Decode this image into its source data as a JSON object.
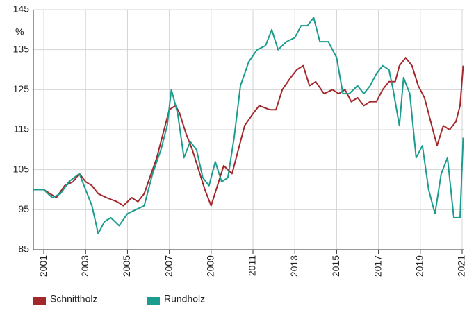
{
  "chart_data": {
    "type": "line",
    "unit_label": "%",
    "xlim": [
      2000.5,
      2021.1
    ],
    "xticks": [
      2001,
      2003,
      2005,
      2007,
      2009,
      2011,
      2013,
      2015,
      2017,
      2019,
      2021
    ],
    "ylim": [
      85,
      145
    ],
    "yticks": [
      85,
      95,
      105,
      115,
      125,
      135,
      145
    ],
    "grid": true,
    "legend": "bottom",
    "series": [
      {
        "name": "Schnittholz",
        "color": "#a3282b",
        "x": [
          2000.5,
          2001,
          2001.3,
          2001.6,
          2002,
          2002.4,
          2002.7,
          2003,
          2003.3,
          2003.6,
          2004,
          2004.5,
          2004.8,
          2005.2,
          2005.5,
          2005.8,
          2006,
          2006.4,
          2006.8,
          2007,
          2007.3,
          2007.5,
          2007.8,
          2008.1,
          2008.4,
          2008.7,
          2009,
          2009.3,
          2009.6,
          2010,
          2010.3,
          2010.6,
          2011,
          2011.3,
          2011.8,
          2012.1,
          2012.4,
          2012.8,
          2013.1,
          2013.4,
          2013.7,
          2014,
          2014.4,
          2014.8,
          2015.1,
          2015.4,
          2015.7,
          2016,
          2016.3,
          2016.6,
          2016.9,
          2017.2,
          2017.5,
          2017.8,
          2018,
          2018.3,
          2018.6,
          2018.9,
          2019.2,
          2019.5,
          2019.8,
          2020.1,
          2020.4,
          2020.7,
          2020.9,
          2021.05
        ],
        "values": [
          100,
          100,
          99,
          98,
          101,
          102,
          104,
          102,
          101,
          99,
          98,
          97,
          96,
          98,
          97,
          99,
          102,
          108,
          116,
          120,
          121,
          119,
          114,
          110,
          105,
          100,
          96,
          101,
          106,
          104,
          110,
          116,
          119,
          121,
          120,
          120,
          125,
          128,
          130,
          131,
          126,
          127,
          124,
          125,
          124,
          125,
          122,
          123,
          121,
          122,
          122,
          125,
          127,
          127,
          131,
          133,
          131,
          126,
          123,
          117,
          111,
          116,
          115,
          117,
          121,
          131
        ]
      },
      {
        "name": "Rundholz",
        "color": "#1a9c8e",
        "x": [
          2000.5,
          2001,
          2001.4,
          2001.8,
          2002.2,
          2002.7,
          2003,
          2003.3,
          2003.6,
          2003.9,
          2004.2,
          2004.6,
          2005,
          2005.4,
          2005.8,
          2006.2,
          2006.6,
          2006.9,
          2007.1,
          2007.4,
          2007.7,
          2008,
          2008.3,
          2008.6,
          2008.9,
          2009.2,
          2009.5,
          2009.8,
          2010.1,
          2010.4,
          2010.8,
          2011.2,
          2011.6,
          2011.9,
          2012.2,
          2012.6,
          2013,
          2013.3,
          2013.6,
          2013.9,
          2014.2,
          2014.6,
          2015,
          2015.3,
          2015.6,
          2016,
          2016.3,
          2016.6,
          2016.9,
          2017.2,
          2017.5,
          2017.7,
          2018,
          2018.2,
          2018.5,
          2018.8,
          2019.1,
          2019.4,
          2019.7,
          2020,
          2020.3,
          2020.6,
          2020.9,
          2021.05
        ],
        "values": [
          100,
          100,
          98,
          99,
          102,
          104,
          100,
          96,
          89,
          92,
          93,
          91,
          94,
          95,
          96,
          104,
          110,
          116,
          125,
          119,
          108,
          112,
          110,
          103,
          101,
          107,
          102,
          103,
          113,
          126,
          132,
          135,
          136,
          140,
          135,
          137,
          138,
          141,
          141,
          143,
          137,
          137,
          133,
          124,
          124,
          126,
          124,
          126,
          129,
          131,
          130,
          125,
          116,
          128,
          124,
          108,
          111,
          100,
          94,
          104,
          108,
          93,
          93,
          113
        ]
      }
    ]
  }
}
